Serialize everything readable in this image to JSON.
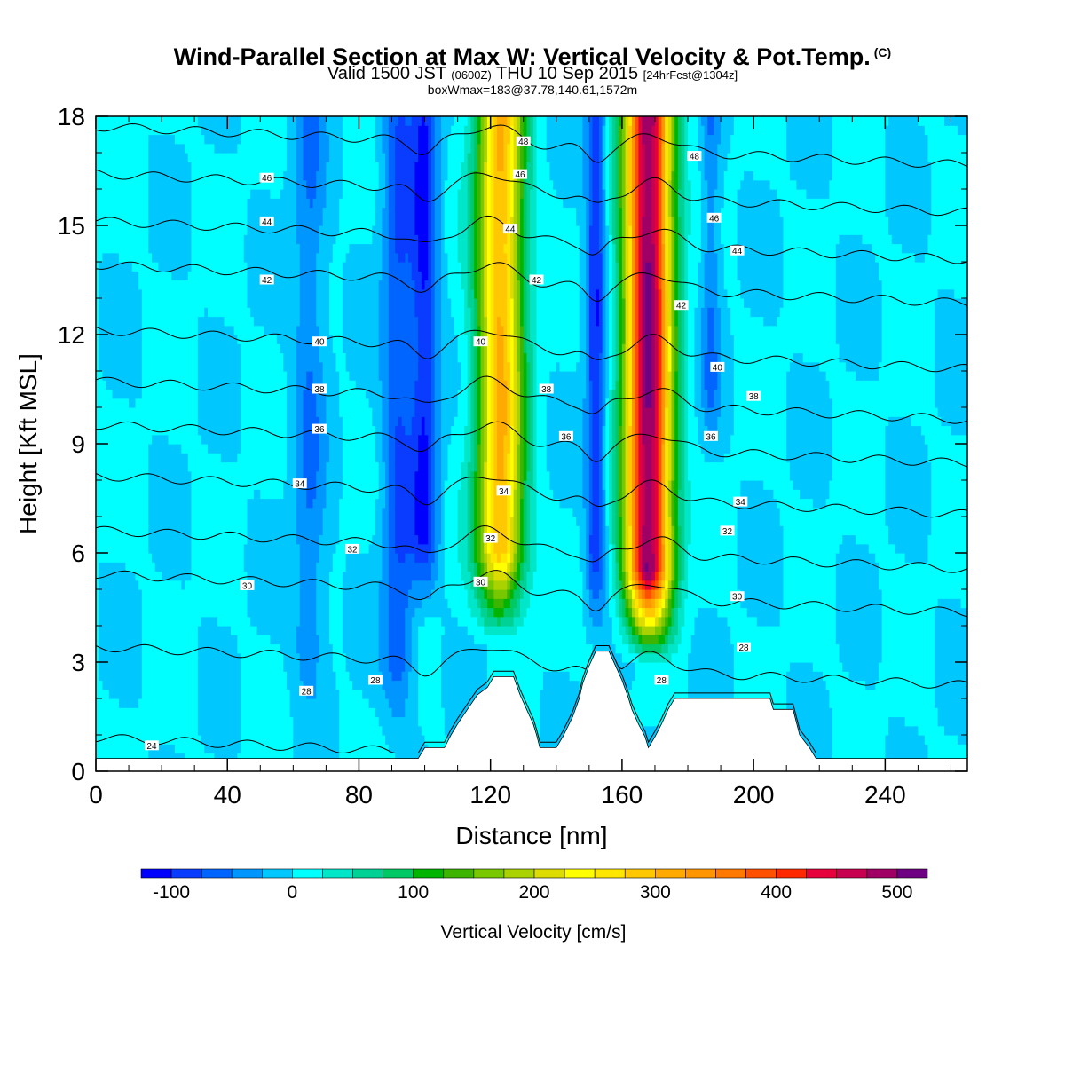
{
  "header": {
    "title": "Wind-Parallel Section at Max W: Vertical Velocity & Pot.Temp.",
    "title_mark": "(C)",
    "valid_prefix": "Valid 1500 JST",
    "valid_utc": "(0600Z)",
    "valid_date": "THU 10 Sep 2015",
    "forecast": "[24hrFcst@1304z]",
    "boxwmax": "boxWmax=183@37.78,140.61,1572m"
  },
  "chart_data": {
    "type": "heatmap",
    "title": "Wind-Parallel Section at Max W: Vertical Velocity & Pot.Temp.",
    "xlabel": "Distance [nm]",
    "ylabel": "Height [Kft MSL]",
    "xlim": [
      0,
      265
    ],
    "ylim": [
      0,
      18
    ],
    "x_ticks": [
      "0",
      "40",
      "80",
      "120",
      "160",
      "200",
      "240"
    ],
    "y_ticks": [
      "0",
      "3",
      "6",
      "9",
      "12",
      "15",
      "18"
    ],
    "x_tick_values": [
      0,
      40,
      80,
      120,
      160,
      200,
      240
    ],
    "y_tick_values": [
      0,
      3,
      6,
      9,
      12,
      15,
      18
    ],
    "colorbar": {
      "label": "Vertical Velocity [cm/s]",
      "tick_labels": [
        "-100",
        "0",
        "100",
        "200",
        "300",
        "400",
        "500"
      ],
      "tick_values": [
        -100,
        0,
        100,
        200,
        300,
        400,
        500
      ],
      "bounds": [
        -125,
        525
      ],
      "levels": [
        -125,
        -100,
        -75,
        -50,
        -25,
        0,
        25,
        50,
        75,
        100,
        125,
        150,
        175,
        200,
        225,
        250,
        275,
        300,
        325,
        350,
        375,
        400,
        425,
        450,
        475,
        500,
        525
      ],
      "colors": [
        "#0000ff",
        "#0a3cff",
        "#0064ff",
        "#0096ff",
        "#00c8ff",
        "#00ffff",
        "#00e6c8",
        "#00d296",
        "#00c864",
        "#00b400",
        "#3cb400",
        "#78c800",
        "#aad200",
        "#dcdc00",
        "#ffff00",
        "#ffe600",
        "#ffc800",
        "#ffaa00",
        "#ff9600",
        "#ff7800",
        "#ff5000",
        "#ff2800",
        "#e6003c",
        "#c80050",
        "#a00064",
        "#6e0082"
      ]
    },
    "vertical_velocity_features": [
      {
        "x": 168,
        "half_width": 7,
        "z_bottom": 3,
        "peak": 500
      },
      {
        "x": 123,
        "half_width": 7,
        "z_bottom": 3.5,
        "peak": 300
      },
      {
        "x": 100,
        "half_width": 4,
        "z_bottom": 4,
        "peak": -100
      },
      {
        "x": 92,
        "half_width": 5,
        "z_bottom": 0.5,
        "peak": -75
      },
      {
        "x": 152,
        "half_width": 3,
        "z_bottom": 3.5,
        "peak": -100
      },
      {
        "x": 65,
        "half_width": 5,
        "z_bottom": 1,
        "peak": -50
      },
      {
        "x": 187,
        "half_width": 3,
        "z_bottom": 8,
        "peak": -50
      }
    ],
    "terrain": [
      [
        0,
        0.35
      ],
      [
        98,
        0.35
      ],
      [
        100,
        0.65
      ],
      [
        106,
        0.65
      ],
      [
        108,
        1.0
      ],
      [
        110,
        1.3
      ],
      [
        113,
        1.7
      ],
      [
        116,
        2.1
      ],
      [
        119,
        2.3
      ],
      [
        121,
        2.6
      ],
      [
        127,
        2.6
      ],
      [
        129,
        2.1
      ],
      [
        131,
        1.7
      ],
      [
        133,
        1.3
      ],
      [
        134,
        1.0
      ],
      [
        135,
        0.65
      ],
      [
        140,
        0.65
      ],
      [
        142,
        0.95
      ],
      [
        145,
        1.5
      ],
      [
        147,
        2.0
      ],
      [
        148,
        2.4
      ],
      [
        150,
        2.9
      ],
      [
        152,
        3.3
      ],
      [
        156,
        3.3
      ],
      [
        158,
        2.9
      ],
      [
        160,
        2.5
      ],
      [
        162,
        2.0
      ],
      [
        163,
        1.7
      ],
      [
        165,
        1.3
      ],
      [
        167,
        0.95
      ],
      [
        168,
        0.65
      ],
      [
        170,
        0.95
      ],
      [
        172,
        1.3
      ],
      [
        174,
        1.7
      ],
      [
        176,
        2.0
      ],
      [
        205,
        2.0
      ],
      [
        206,
        1.7
      ],
      [
        212,
        1.7
      ],
      [
        214,
        1.0
      ],
      [
        217,
        0.65
      ],
      [
        219,
        0.35
      ],
      [
        265,
        0.35
      ]
    ],
    "theta_contours": [
      {
        "level": 24,
        "z_base": 0.4
      },
      {
        "level": 28,
        "z_base": 2.9
      },
      {
        "level": 30,
        "z_base": 4.9
      },
      {
        "level": 32,
        "z_base": 6.1
      },
      {
        "level": 34,
        "z_base": 7.6
      },
      {
        "level": 36,
        "z_base": 9.0
      },
      {
        "level": 38,
        "z_base": 10.2
      },
      {
        "level": 40,
        "z_base": 11.6
      },
      {
        "level": 42,
        "z_base": 13.4
      },
      {
        "level": 44,
        "z_base": 14.6
      },
      {
        "level": 46,
        "z_base": 15.9
      },
      {
        "level": 48,
        "z_base": 17.2
      }
    ],
    "theta_labels": [
      {
        "text": "24",
        "x": 17,
        "z": 0.7
      },
      {
        "text": "28",
        "x": 64,
        "z": 2.2
      },
      {
        "text": "28",
        "x": 85,
        "z": 2.5
      },
      {
        "text": "28",
        "x": 172,
        "z": 2.5
      },
      {
        "text": "28",
        "x": 197,
        "z": 3.4
      },
      {
        "text": "30",
        "x": 46,
        "z": 5.1
      },
      {
        "text": "30",
        "x": 117,
        "z": 5.2
      },
      {
        "text": "30",
        "x": 195,
        "z": 4.8
      },
      {
        "text": "32",
        "x": 78,
        "z": 6.1
      },
      {
        "text": "32",
        "x": 120,
        "z": 6.4
      },
      {
        "text": "32",
        "x": 192,
        "z": 6.6
      },
      {
        "text": "34",
        "x": 62,
        "z": 7.9
      },
      {
        "text": "34",
        "x": 124,
        "z": 7.7
      },
      {
        "text": "34",
        "x": 196,
        "z": 7.4
      },
      {
        "text": "36",
        "x": 68,
        "z": 9.4
      },
      {
        "text": "36",
        "x": 143,
        "z": 9.2
      },
      {
        "text": "36",
        "x": 187,
        "z": 9.2
      },
      {
        "text": "38",
        "x": 68,
        "z": 10.5
      },
      {
        "text": "38",
        "x": 137,
        "z": 10.5
      },
      {
        "text": "38",
        "x": 200,
        "z": 10.3
      },
      {
        "text": "40",
        "x": 68,
        "z": 11.8
      },
      {
        "text": "40",
        "x": 117,
        "z": 11.8
      },
      {
        "text": "40",
        "x": 189,
        "z": 11.1
      },
      {
        "text": "42",
        "x": 52,
        "z": 13.5
      },
      {
        "text": "42",
        "x": 134,
        "z": 13.5
      },
      {
        "text": "42",
        "x": 178,
        "z": 12.8
      },
      {
        "text": "44",
        "x": 52,
        "z": 15.1
      },
      {
        "text": "44",
        "x": 126,
        "z": 14.9
      },
      {
        "text": "44",
        "x": 195,
        "z": 14.3
      },
      {
        "text": "46",
        "x": 52,
        "z": 16.3
      },
      {
        "text": "46",
        "x": 129,
        "z": 16.4
      },
      {
        "text": "46",
        "x": 188,
        "z": 15.2
      },
      {
        "text": "48",
        "x": 130,
        "z": 17.3
      },
      {
        "text": "48",
        "x": 182,
        "z": 16.9
      }
    ]
  }
}
